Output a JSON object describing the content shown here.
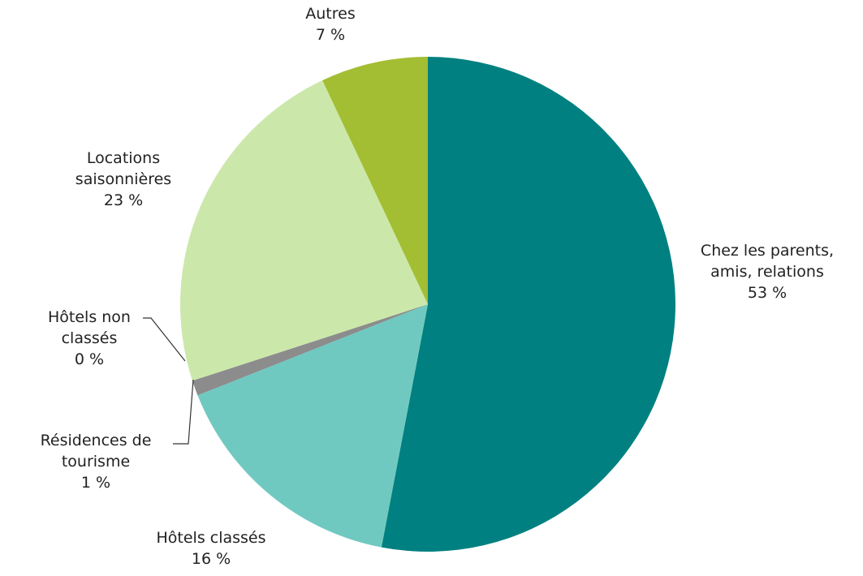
{
  "chart_data": {
    "type": "pie",
    "categories": [
      "Chez les parents, amis, relations",
      "Hôtels classés",
      "Résidences de tourisme",
      "Hôtels non classés",
      "Locations saisonnières",
      "Autres"
    ],
    "values": [
      53,
      16,
      1,
      0,
      23,
      7
    ],
    "value_labels": [
      "53 %",
      "16 %",
      "1 %",
      "0 %",
      "23 %",
      "7 %"
    ],
    "colors": [
      "#008080",
      "#70c9c0",
      "#8c8c8c",
      "#a9c8ec",
      "#cbe8aa",
      "#a3be33"
    ]
  }
}
